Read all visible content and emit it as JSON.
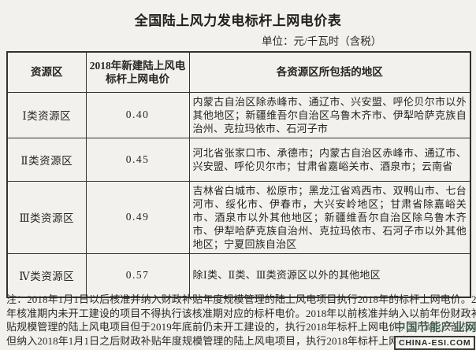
{
  "page": {
    "title": "全国陆上风力发电标杆上网电价表",
    "unit_label": "单位：元/千瓦时（含税）"
  },
  "table": {
    "headers": {
      "zone": "资源区",
      "price": "2018年新建陆上风电标杆上网电价",
      "regions": "各资源区所包括的地区"
    },
    "rows": [
      {
        "zone": "Ⅰ类资源区",
        "price": "0.40",
        "regions": "内蒙古自治区除赤峰市、通辽市、兴安盟、呼伦贝尔市以外其他地区；新疆维吾尔自治区乌鲁木齐市、伊犁哈萨克族自治州、克拉玛依市、石河子市"
      },
      {
        "zone": "Ⅱ类资源区",
        "price": "0.45",
        "regions": "河北省张家口市、承德市；内蒙古自治区赤峰市、通辽市、兴安盟、呼伦贝尔市；甘肃省嘉峪关市、酒泉市；云南省"
      },
      {
        "zone": "Ⅲ类资源区",
        "price": "0.49",
        "regions": "吉林省白城市、松原市；黑龙江省鸡西市、双鸭山市、七台河市、绥化市、伊春市，大兴安岭地区；甘肃省除嘉峪关市、酒泉市以外其他地区；新疆维吾尔自治区除乌鲁木齐市、伊犁哈萨克族自治州、克拉玛依市、石河子市以外其他地区；宁夏回族自治区"
      },
      {
        "zone": "Ⅳ类资源区",
        "price": "0.57",
        "regions": "除Ⅰ类、Ⅱ类、Ⅲ类资源区以外的其他地区"
      }
    ]
  },
  "notes": {
    "lines": [
      "注：2018年1月1日以后核准并纳入财政补贴年度规模管理的陆上风电项目执行2018年的标杆上网电价。2",
      "年核准期内未开工建设的项目不得执行该核准期对应的标杆电价。2018年以前核准并纳入以前年份财政补",
      "贴规模管理的陆上风电项目但于2019年底前仍未开工建设的，执行2018年标杆上网电价。2018年以前核准",
      "但纳入2018年1月1日之后财政补贴年度规模管理的陆上风电项目，执行2018年标杆上网电价。"
    ]
  },
  "watermark": {
    "site_name": "中国节能产业网",
    "site_domain": "CHINA-ESI.COM",
    "accent_color": "#3f5a4c"
  },
  "colors": {
    "page_background": "#f2f1ee",
    "text": "#262522",
    "table_border": "#34322e"
  }
}
